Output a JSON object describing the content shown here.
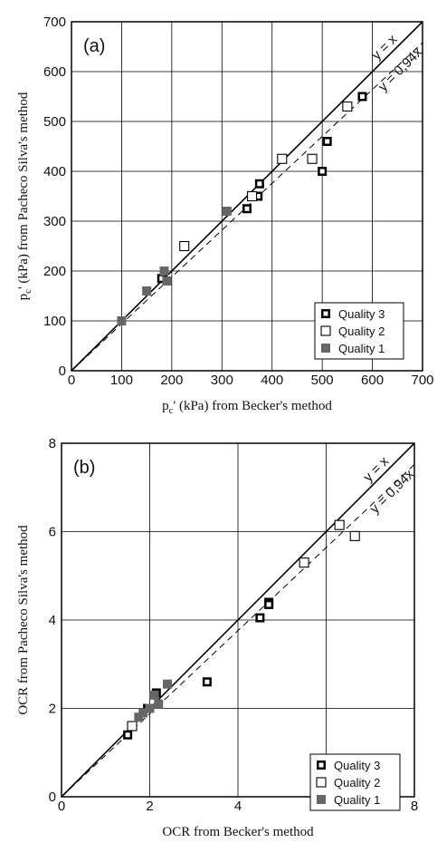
{
  "chart_data": [
    {
      "type": "scatter",
      "panel_label": "(a)",
      "xlabel": "p",
      "xlabel_sub": "c",
      "xlabel_rest": "' (kPa) from Becker's method",
      "ylabel": "p",
      "ylabel_sub": "c",
      "ylabel_rest": "' (kPa) from Pacheco Silva's method",
      "xlim": [
        0,
        700
      ],
      "ylim": [
        0,
        700
      ],
      "xticks": [
        0,
        100,
        200,
        300,
        400,
        500,
        600,
        700
      ],
      "yticks": [
        0,
        100,
        200,
        300,
        400,
        500,
        600,
        700
      ],
      "xtick_labels": [
        "0",
        "100",
        "200",
        "300",
        "400",
        "500",
        "600",
        "700"
      ],
      "ytick_labels": [
        "0",
        "100",
        "200",
        "300",
        "400",
        "500",
        "600",
        "700"
      ],
      "grid": true,
      "lines": [
        {
          "label": "y = x",
          "slope": 1.0,
          "style": "solid"
        },
        {
          "label": "y = 0,94x",
          "slope": 0.94,
          "style": "dashed"
        }
      ],
      "legend_position": "bottom-right",
      "series": [
        {
          "name": "Quality 3",
          "marker": "thick-open-square",
          "points": [
            [
              180,
              185
            ],
            [
              350,
              325
            ],
            [
              372,
              350
            ],
            [
              375,
              375
            ],
            [
              500,
              400
            ],
            [
              510,
              460
            ],
            [
              580,
              550
            ]
          ]
        },
        {
          "name": "Quality 2",
          "marker": "open-square",
          "points": [
            [
              225,
              250
            ],
            [
              360,
              350
            ],
            [
              420,
              425
            ],
            [
              480,
              425
            ],
            [
              550,
              530
            ]
          ]
        },
        {
          "name": "Quality 1",
          "marker": "filled-square",
          "points": [
            [
              100,
              100
            ],
            [
              150,
              160
            ],
            [
              185,
              200
            ],
            [
              190,
              180
            ],
            [
              310,
              320
            ]
          ]
        }
      ]
    },
    {
      "type": "scatter",
      "panel_label": "(b)",
      "xlabel": "OCR from Becker's method",
      "ylabel": "OCR from Pacheco Silva's method",
      "xlim": [
        0,
        8
      ],
      "ylim": [
        0,
        8
      ],
      "xticks": [
        0,
        2,
        4,
        6,
        8
      ],
      "yticks": [
        0,
        2,
        4,
        6,
        8
      ],
      "xtick_labels": [
        "0",
        "2",
        "4",
        "6",
        "8"
      ],
      "ytick_labels": [
        "0",
        "2",
        "4",
        "6",
        "8"
      ],
      "grid": true,
      "lines": [
        {
          "label": "y = x",
          "slope": 1.0,
          "style": "solid"
        },
        {
          "label": "y = 0,94x",
          "slope": 0.94,
          "style": "dashed"
        }
      ],
      "legend_position": "bottom-right",
      "series": [
        {
          "name": "Quality 3",
          "marker": "thick-open-square",
          "points": [
            [
              1.5,
              1.4
            ],
            [
              1.95,
              2.0
            ],
            [
              2.15,
              2.35
            ],
            [
              3.3,
              2.6
            ],
            [
              4.5,
              4.05
            ],
            [
              4.7,
              4.4
            ],
            [
              4.7,
              4.35
            ]
          ]
        },
        {
          "name": "Quality 2",
          "marker": "open-square",
          "points": [
            [
              1.6,
              1.6
            ],
            [
              5.5,
              5.3
            ],
            [
              6.3,
              6.15
            ],
            [
              6.65,
              5.9
            ]
          ]
        },
        {
          "name": "Quality 1",
          "marker": "filled-square",
          "points": [
            [
              1.75,
              1.8
            ],
            [
              1.85,
              1.9
            ],
            [
              2.0,
              2.0
            ],
            [
              2.1,
              2.3
            ],
            [
              2.2,
              2.1
            ],
            [
              2.4,
              2.55
            ]
          ]
        }
      ]
    }
  ]
}
